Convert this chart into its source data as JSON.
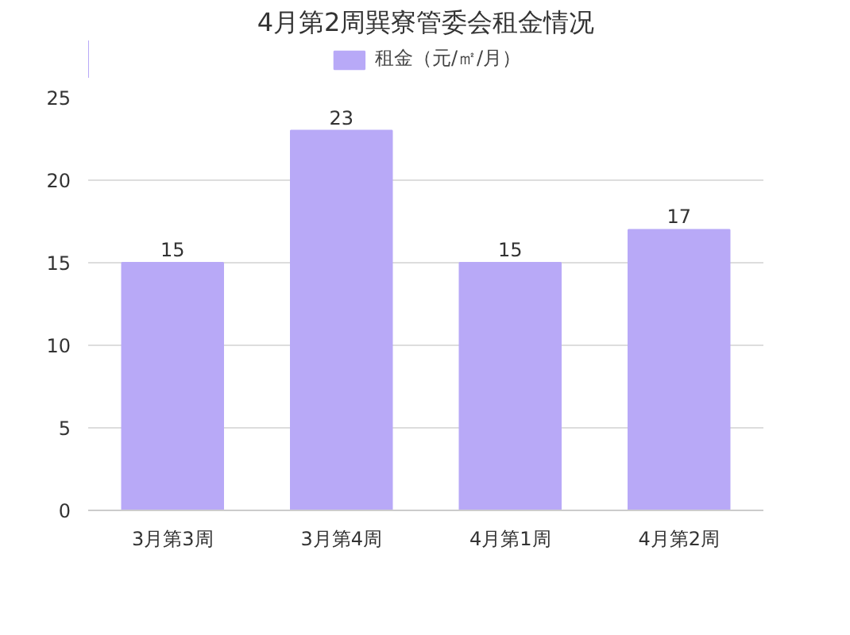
{
  "chart_data": {
    "type": "bar",
    "title": "4月第2周巽寮管委会租金情况",
    "categories": [
      "3月第3周",
      "3月第4周",
      "4月第1周",
      "4月第2周"
    ],
    "series": [
      {
        "name": "租金（元/㎡/月）",
        "color": "#b8a9f7",
        "values": [
          15,
          23,
          15,
          17
        ]
      }
    ],
    "ylim": [
      0,
      25
    ],
    "yticks": [
      0,
      5,
      10,
      15,
      20,
      25
    ],
    "grid": "y",
    "legend": "top",
    "data_labels": true
  }
}
